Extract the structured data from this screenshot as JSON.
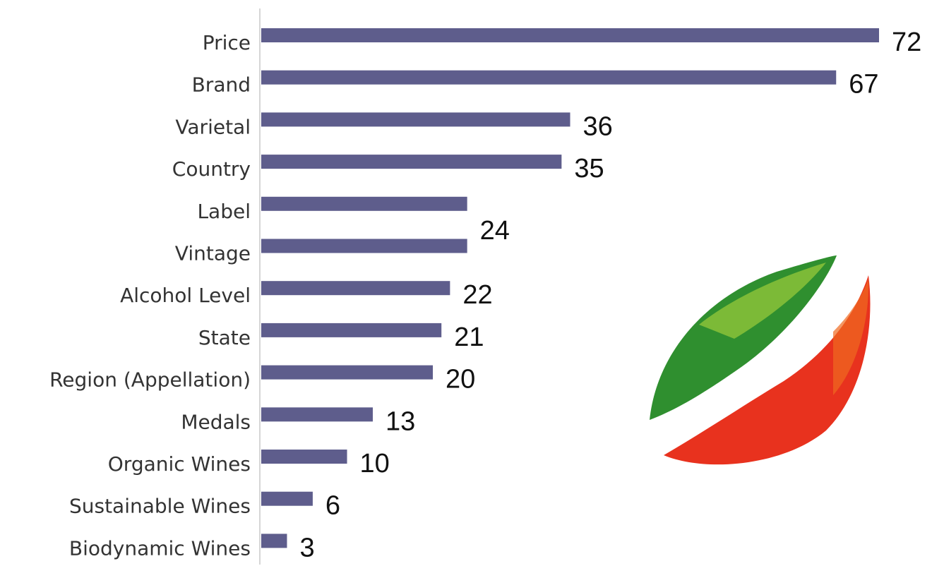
{
  "chart_data": {
    "type": "hbar",
    "categories": [
      "Price",
      "Brand",
      "Varietal",
      "Country",
      "Label",
      "Vintage",
      "Alcohol Level",
      "State",
      "Region (Appellation)",
      "Medals",
      "Organic Wines",
      "Sustainable Wines",
      "Biodynamic Wines"
    ],
    "values": [
      72,
      67,
      36,
      35,
      24,
      24,
      22,
      21,
      20,
      13,
      10,
      6,
      3
    ],
    "value_labels": [
      "72",
      "67",
      "36",
      "35",
      "24",
      null,
      "22",
      "21",
      "20",
      "13",
      "10",
      "6",
      "3"
    ],
    "color": "#5e5d8c"
  }
}
